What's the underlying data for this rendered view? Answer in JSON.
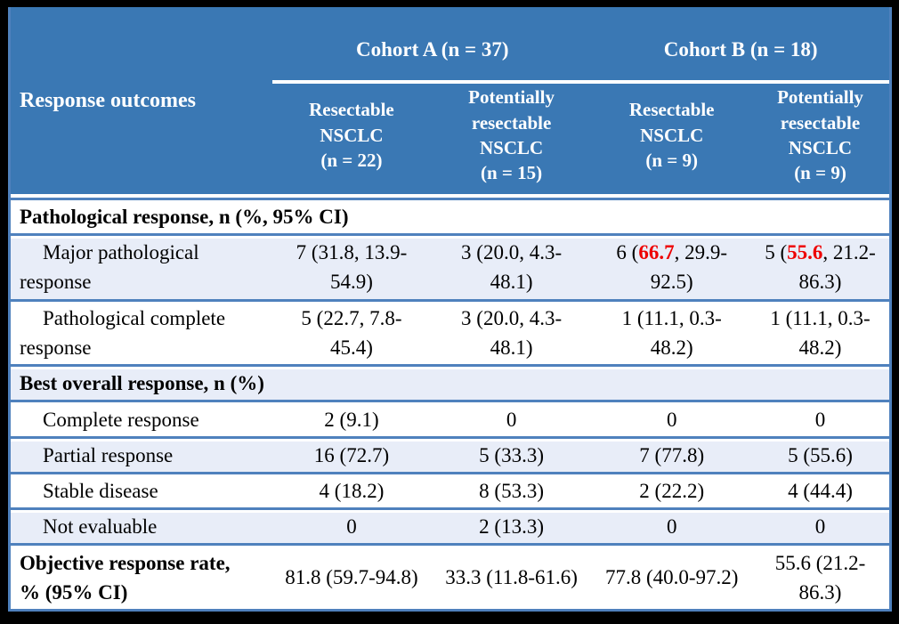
{
  "colors": {
    "header_background": "#3a78b4",
    "header_text": "#ffffff",
    "row_separator": "#4f81bd",
    "shaded_row_background": "#e8edf8",
    "highlight_red": "#ee0000",
    "frame_black": "#000000",
    "body_text": "#000000"
  },
  "table": {
    "header": {
      "row_label": "Response outcomes",
      "groups": [
        {
          "label": "Cohort A (n = 37)"
        },
        {
          "label": "Cohort B (n = 18)"
        }
      ],
      "subcolumns": [
        "Resectable\nNSCLC\n(n = 22)",
        "Potentially\nresectable\nNSCLC\n(n = 15)",
        "Resectable\nNSCLC\n(n = 9)",
        "Potentially\nresectable\nNSCLC\n(n = 9)"
      ]
    },
    "rows": [
      {
        "type": "section",
        "label": "Pathological response, n (%, 95% CI)",
        "shaded": false
      },
      {
        "type": "data",
        "label": "Major pathological response",
        "indent": true,
        "shaded": true,
        "cells": [
          [
            {
              "text": "7 (31.8, 13.9-54.9)"
            }
          ],
          [
            {
              "text": "3 (20.0, 4.3-48.1)"
            }
          ],
          [
            {
              "text": "6 ("
            },
            {
              "text": "66.7",
              "red": true
            },
            {
              "text": ", 29.9-92.5)"
            }
          ],
          [
            {
              "text": "5 ("
            },
            {
              "text": "55.6",
              "red": true
            },
            {
              "text": ", 21.2-86.3)"
            }
          ]
        ]
      },
      {
        "type": "data",
        "label": "Pathological complete response",
        "indent": true,
        "shaded": false,
        "cells": [
          [
            {
              "text": "5 (22.7, 7.8-45.4)"
            }
          ],
          [
            {
              "text": "3 (20.0, 4.3-48.1)"
            }
          ],
          [
            {
              "text": "1 (11.1, 0.3-48.2)"
            }
          ],
          [
            {
              "text": "1 (11.1, 0.3-48.2)"
            }
          ]
        ]
      },
      {
        "type": "section",
        "label": "Best overall response, n (%)",
        "shaded": true
      },
      {
        "type": "data",
        "label": "Complete response",
        "indent": true,
        "shaded": false,
        "cells": [
          [
            {
              "text": "2 (9.1)"
            }
          ],
          [
            {
              "text": "0"
            }
          ],
          [
            {
              "text": "0"
            }
          ],
          [
            {
              "text": "0"
            }
          ]
        ]
      },
      {
        "type": "data",
        "label": "Partial response",
        "indent": true,
        "shaded": true,
        "cells": [
          [
            {
              "text": "16 (72.7)"
            }
          ],
          [
            {
              "text": "5 (33.3)"
            }
          ],
          [
            {
              "text": "7 (77.8)"
            }
          ],
          [
            {
              "text": "5 (55.6)"
            }
          ]
        ]
      },
      {
        "type": "data",
        "label": "Stable disease",
        "indent": true,
        "shaded": false,
        "cells": [
          [
            {
              "text": "4 (18.2)"
            }
          ],
          [
            {
              "text": "8 (53.3)"
            }
          ],
          [
            {
              "text": "2 (22.2)"
            }
          ],
          [
            {
              "text": "4 (44.4)"
            }
          ]
        ]
      },
      {
        "type": "data",
        "label": "Not evaluable",
        "indent": true,
        "shaded": true,
        "cells": [
          [
            {
              "text": "0"
            }
          ],
          [
            {
              "text": "2 (13.3)"
            }
          ],
          [
            {
              "text": "0"
            }
          ],
          [
            {
              "text": "0"
            }
          ]
        ]
      },
      {
        "type": "data",
        "label": "Objective response rate, % (95% CI)",
        "indent": false,
        "bold": true,
        "shaded": false,
        "cells": [
          [
            {
              "text": "81.8 (59.7-94.8)"
            }
          ],
          [
            {
              "text": "33.3 (11.8-61.6)"
            }
          ],
          [
            {
              "text": "77.8 (40.0-97.2)"
            }
          ],
          [
            {
              "text": "55.6 (21.2-86.3)"
            }
          ]
        ]
      }
    ]
  }
}
